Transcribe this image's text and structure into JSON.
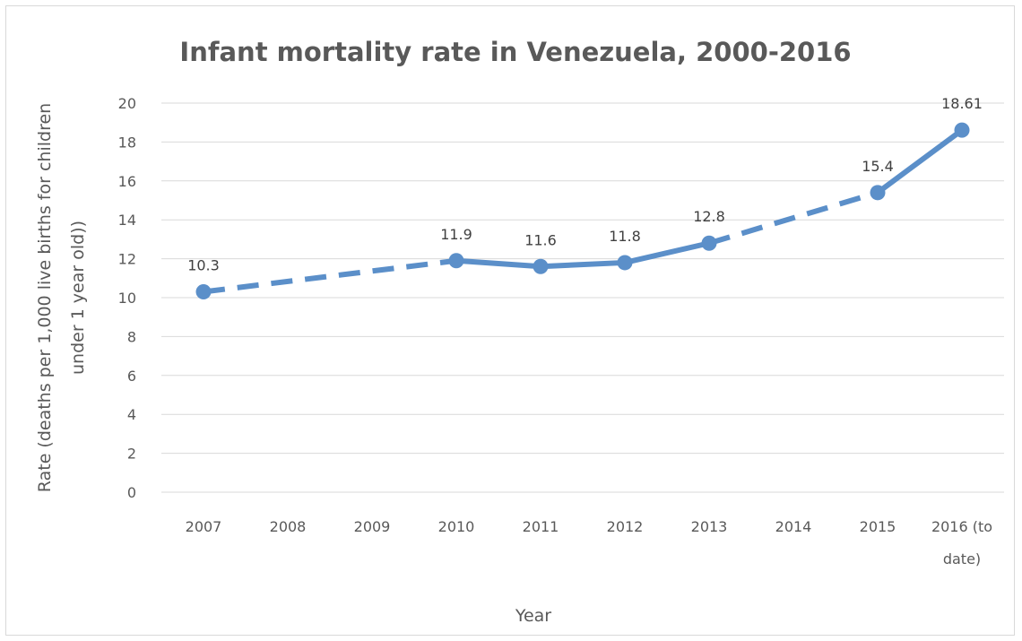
{
  "chart_data": {
    "type": "line",
    "title": "Infant mortality rate in Venezuela, 2000-2016",
    "xlabel": "Year",
    "ylabel": [
      "Rate (deaths per 1,000 live births for children",
      "under 1 year old))"
    ],
    "categories": [
      [
        "2007"
      ],
      [
        "2008"
      ],
      [
        "2009"
      ],
      [
        "2010"
      ],
      [
        "2011"
      ],
      [
        "2012"
      ],
      [
        "2013"
      ],
      [
        "2014"
      ],
      [
        "2015"
      ],
      [
        "2016 (to",
        "date)"
      ]
    ],
    "yticks": [
      "0",
      "2",
      "4",
      "6",
      "8",
      "10",
      "12",
      "14",
      "16",
      "18",
      "20"
    ],
    "ylim": [
      0,
      20
    ],
    "grid": true,
    "legend": "none",
    "color": "#5b8fc9",
    "points": [
      {
        "category_index": 0,
        "value": 10.3,
        "label": "10.3"
      },
      {
        "category_index": 3,
        "value": 11.9,
        "label": "11.9"
      },
      {
        "category_index": 4,
        "value": 11.6,
        "label": "11.6"
      },
      {
        "category_index": 5,
        "value": 11.8,
        "label": "11.8"
      },
      {
        "category_index": 6,
        "value": 12.8,
        "label": "12.8"
      },
      {
        "category_index": 8,
        "value": 15.4,
        "label": "15.4"
      },
      {
        "category_index": 9,
        "value": 18.61,
        "label": "18.61"
      }
    ]
  }
}
